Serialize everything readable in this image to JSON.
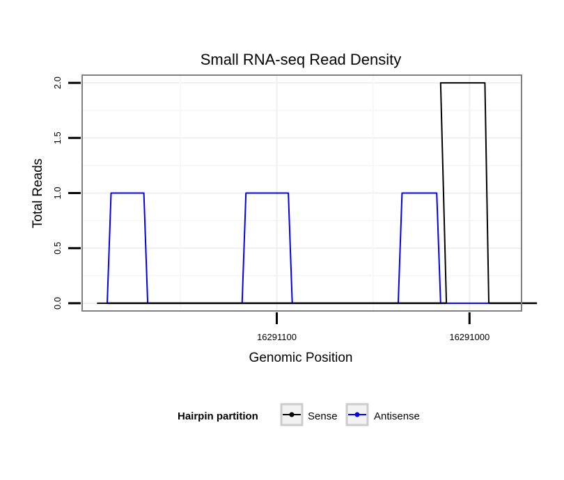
{
  "chart_data": {
    "type": "line",
    "title": "Small RNA-seq Read Density",
    "xlabel": "Genomic Position",
    "ylabel": "Total Reads",
    "x_reversed": true,
    "xlim": [
      16291201,
      16290973
    ],
    "ylim": [
      -0.07,
      2.07
    ],
    "x_ticks": [
      {
        "value": 16291100,
        "label": "16291100"
      },
      {
        "value": 16291000,
        "label": "16291000"
      }
    ],
    "y_ticks": [
      {
        "value": 0,
        "label": "0.0"
      },
      {
        "value": 0.5,
        "label": "0.5"
      },
      {
        "value": 1,
        "label": "1.0"
      },
      {
        "value": 1.5,
        "label": "1.5"
      },
      {
        "value": 2,
        "label": "2.0"
      }
    ],
    "x_minor_grid": [
      16291150,
      16291050,
      16290950
    ],
    "y_minor_grid": [
      0.25,
      0.75,
      1.25,
      1.75
    ],
    "series": [
      {
        "name": "Antisense",
        "color": "#0000ee",
        "x": [
          16291188,
          16291186,
          16291169,
          16291167,
          16291118,
          16291116,
          16291094,
          16291092,
          16291037,
          16291035,
          16291017,
          16291015,
          16290995,
          16290993,
          16290973
        ],
        "y": [
          0,
          1,
          1,
          0,
          0,
          1,
          1,
          0,
          0,
          1,
          1,
          0,
          0,
          0,
          0
        ]
      },
      {
        "name": "Sense",
        "color": "#000000",
        "x": [
          16291188,
          16291193,
          16291012,
          16291015,
          16290992,
          16290990,
          16290965
        ],
        "y": [
          0,
          0,
          0,
          2,
          2,
          0,
          0
        ]
      }
    ],
    "legend": {
      "title": "Hairpin partition",
      "position": "bottom",
      "entries": [
        {
          "label": "Sense",
          "color": "#000000"
        },
        {
          "label": "Antisense",
          "color": "#0000ee"
        }
      ]
    }
  }
}
